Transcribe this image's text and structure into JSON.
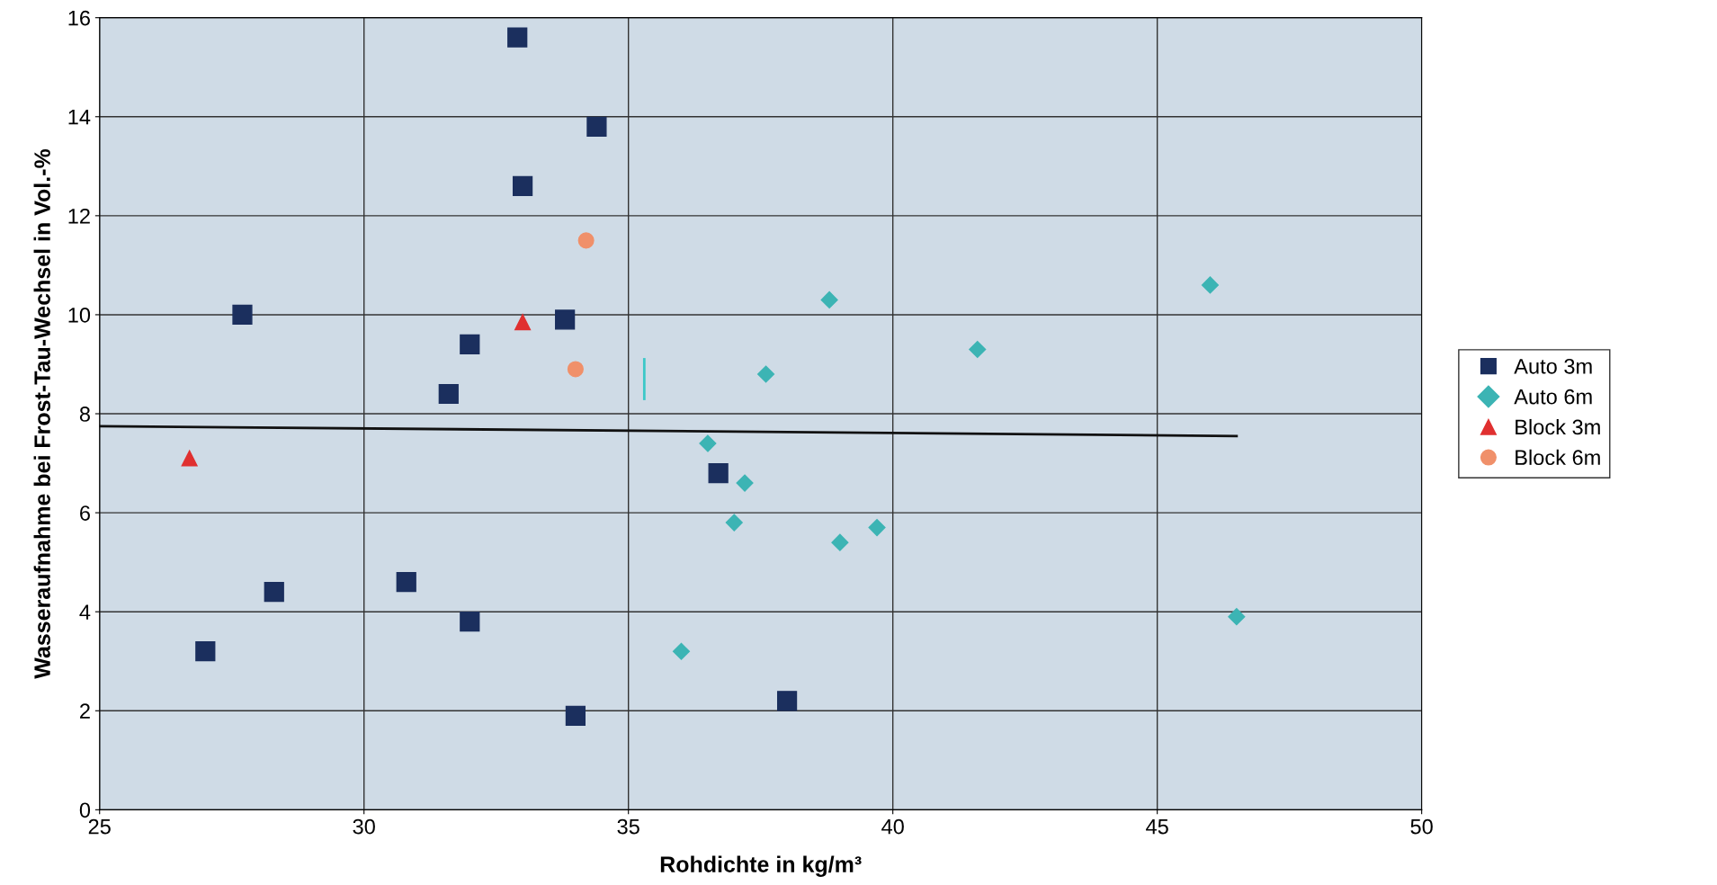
{
  "chart_data": {
    "type": "scatter",
    "xlabel": "Rohdichte in kg/m³",
    "ylabel": "Wasseraufnahme bei Frost-Tau-Wechsel in Vol.-%",
    "xlim": [
      25,
      50
    ],
    "xticks": [
      25,
      30,
      35,
      40,
      45,
      50
    ],
    "ylim": [
      0,
      16
    ],
    "yticks": [
      0,
      2,
      4,
      6,
      8,
      10,
      12,
      14,
      16
    ],
    "grid": true,
    "legend": "right",
    "series": [
      {
        "name": "Auto 3m",
        "color": "#1b2f5e",
        "marker": "square",
        "x": [
          27.0,
          27.7,
          28.3,
          30.8,
          31.6,
          32.0,
          32.0,
          32.9,
          33.0,
          33.8,
          34.4,
          34.0,
          36.7,
          38.0
        ],
        "values": [
          3.2,
          10.0,
          4.4,
          4.6,
          8.4,
          9.4,
          3.8,
          15.6,
          12.6,
          9.9,
          13.8,
          1.9,
          6.8,
          2.2
        ]
      },
      {
        "name": "Auto 6m",
        "color": "#3cb4b4",
        "marker": "diamond",
        "x": [
          36.0,
          36.5,
          37.0,
          37.2,
          37.6,
          38.8,
          39.0,
          39.7,
          41.6,
          46.0,
          46.5
        ],
        "values": [
          3.2,
          7.4,
          5.8,
          6.6,
          8.8,
          10.3,
          5.4,
          5.7,
          9.3,
          10.6,
          3.9
        ]
      },
      {
        "name": "Block 3m",
        "color": "#e03030",
        "marker": "triangle",
        "x": [
          26.7,
          33.0
        ],
        "values": [
          7.1,
          9.85
        ]
      },
      {
        "name": "Block 6m",
        "color": "#f0906a",
        "marker": "circle",
        "x": [
          34.2,
          34.0
        ],
        "values": [
          11.5,
          8.9
        ]
      },
      {
        "type": "line",
        "color": "#111111",
        "marker": "none",
        "x": [
          25,
          46.5
        ],
        "values": [
          7.75,
          7.55
        ]
      },
      {
        "type": "line",
        "color": "#3cc8c8",
        "marker": "none",
        "x": [
          35.3,
          35.3
        ],
        "values": [
          8.3,
          9.1
        ]
      }
    ]
  }
}
